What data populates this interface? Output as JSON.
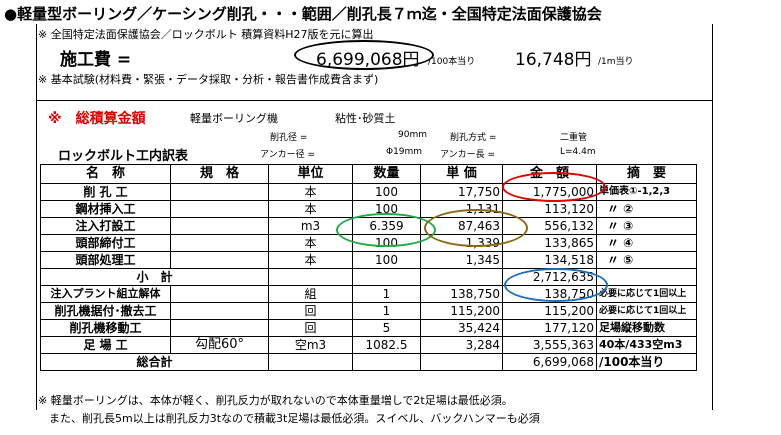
{
  "title": "●軽量型ボーリング／ケーシング削孔・・・範囲／削孔長７ｍ迄・全国特定法面保護協会",
  "note_source": "※ 全国特定法面保護協会／ロックボルト 積算資料H27版を元に算出",
  "construction_cost": {
    "label": "施工費 =",
    "total": "6,699,068円",
    "total_unit": "/100本当り",
    "per_meter": "16,748円",
    "per_meter_unit": "/1m当り"
  },
  "note_basic": "※ 基本試験(材料費・緊張・データ採取・分析・報告書作成費含まず)",
  "summary": {
    "label": "※　総積算金額",
    "machine": "軽量ボーリング機",
    "soil": "粘性･砂質土"
  },
  "params": {
    "hole_dia_label": "削孔径 =",
    "hole_dia": "90mm",
    "method_label": "削孔方式 =",
    "method": "二重管",
    "anchor_dia_label": "アンカー径 =",
    "anchor_dia": "Φ19mm",
    "anchor_len_label": "アンカー長 =",
    "anchor_len": "L=4.4m"
  },
  "table_title": "ロックボルト工内訳表",
  "headers": [
    "名　称",
    "規　格",
    "単位",
    "数量",
    "単 価",
    "金　額",
    "摘　要"
  ],
  "rows": [
    {
      "name": "削 孔 工",
      "spec": "",
      "unit": "本",
      "qty": "100",
      "price": "17,750",
      "amount": "1,775,000",
      "remark": "単価表①-1,2,3"
    },
    {
      "name": "鋼材挿入工",
      "spec": "",
      "unit": "本",
      "qty": "100",
      "price": "1,131",
      "amount": "113,120",
      "remark": "〃 ②"
    },
    {
      "name": "注入打設工",
      "spec": "",
      "unit": "m3",
      "qty": "6.359",
      "price": "87,463",
      "amount": "556,132",
      "remark": "〃 ③"
    },
    {
      "name": "頭部締付工",
      "spec": "",
      "unit": "本",
      "qty": "100",
      "price": "1,339",
      "amount": "133,865",
      "remark": "〃 ④"
    },
    {
      "name": "頭部処理工",
      "spec": "",
      "unit": "本",
      "qty": "100",
      "price": "1,345",
      "amount": "134,518",
      "remark": "〃 ⑤"
    }
  ],
  "subtotal": {
    "label": "小　計",
    "amount": "2,712,635"
  },
  "rows2": [
    {
      "name": "注入プラント組立解体",
      "spec": "",
      "unit": "組",
      "qty": "1",
      "price": "138,750",
      "amount": "138,750",
      "remark": "必要に応じて1回以上"
    },
    {
      "name": "削孔機据付･撤去工",
      "spec": "",
      "unit": "回",
      "qty": "1",
      "price": "115,200",
      "amount": "115,200",
      "remark": "必要に応じて1回以上"
    },
    {
      "name": "削孔機移動工",
      "spec": "",
      "unit": "回",
      "qty": "5",
      "price": "35,424",
      "amount": "177,120",
      "remark": "足場縦移動数"
    },
    {
      "name": "足 場 工",
      "spec": "勾配60°",
      "unit": "空m3",
      "qty": "1082.5",
      "price": "3,284",
      "amount": "3,555,363",
      "remark": "40本/433空m3"
    }
  ],
  "total": {
    "label": "総合計",
    "amount": "6,699,068",
    "remark": "/100本当り"
  },
  "footnote1": "※ 軽量ボーリングは、本体が軽く、削孔反力が取れないので本体重量増しで2t足場は最低必須。",
  "footnote2": "　また、削孔長5m以上は削孔反力3tなので積載3t足場は最低必須。スイベル、バックハンマーも必須",
  "colors": {
    "red_circle": "#e00000",
    "green_circle": "#22aa44",
    "brown_circle": "#8a6a10",
    "blue_circle": "#1f6fbf",
    "black_circle": "#000000"
  }
}
